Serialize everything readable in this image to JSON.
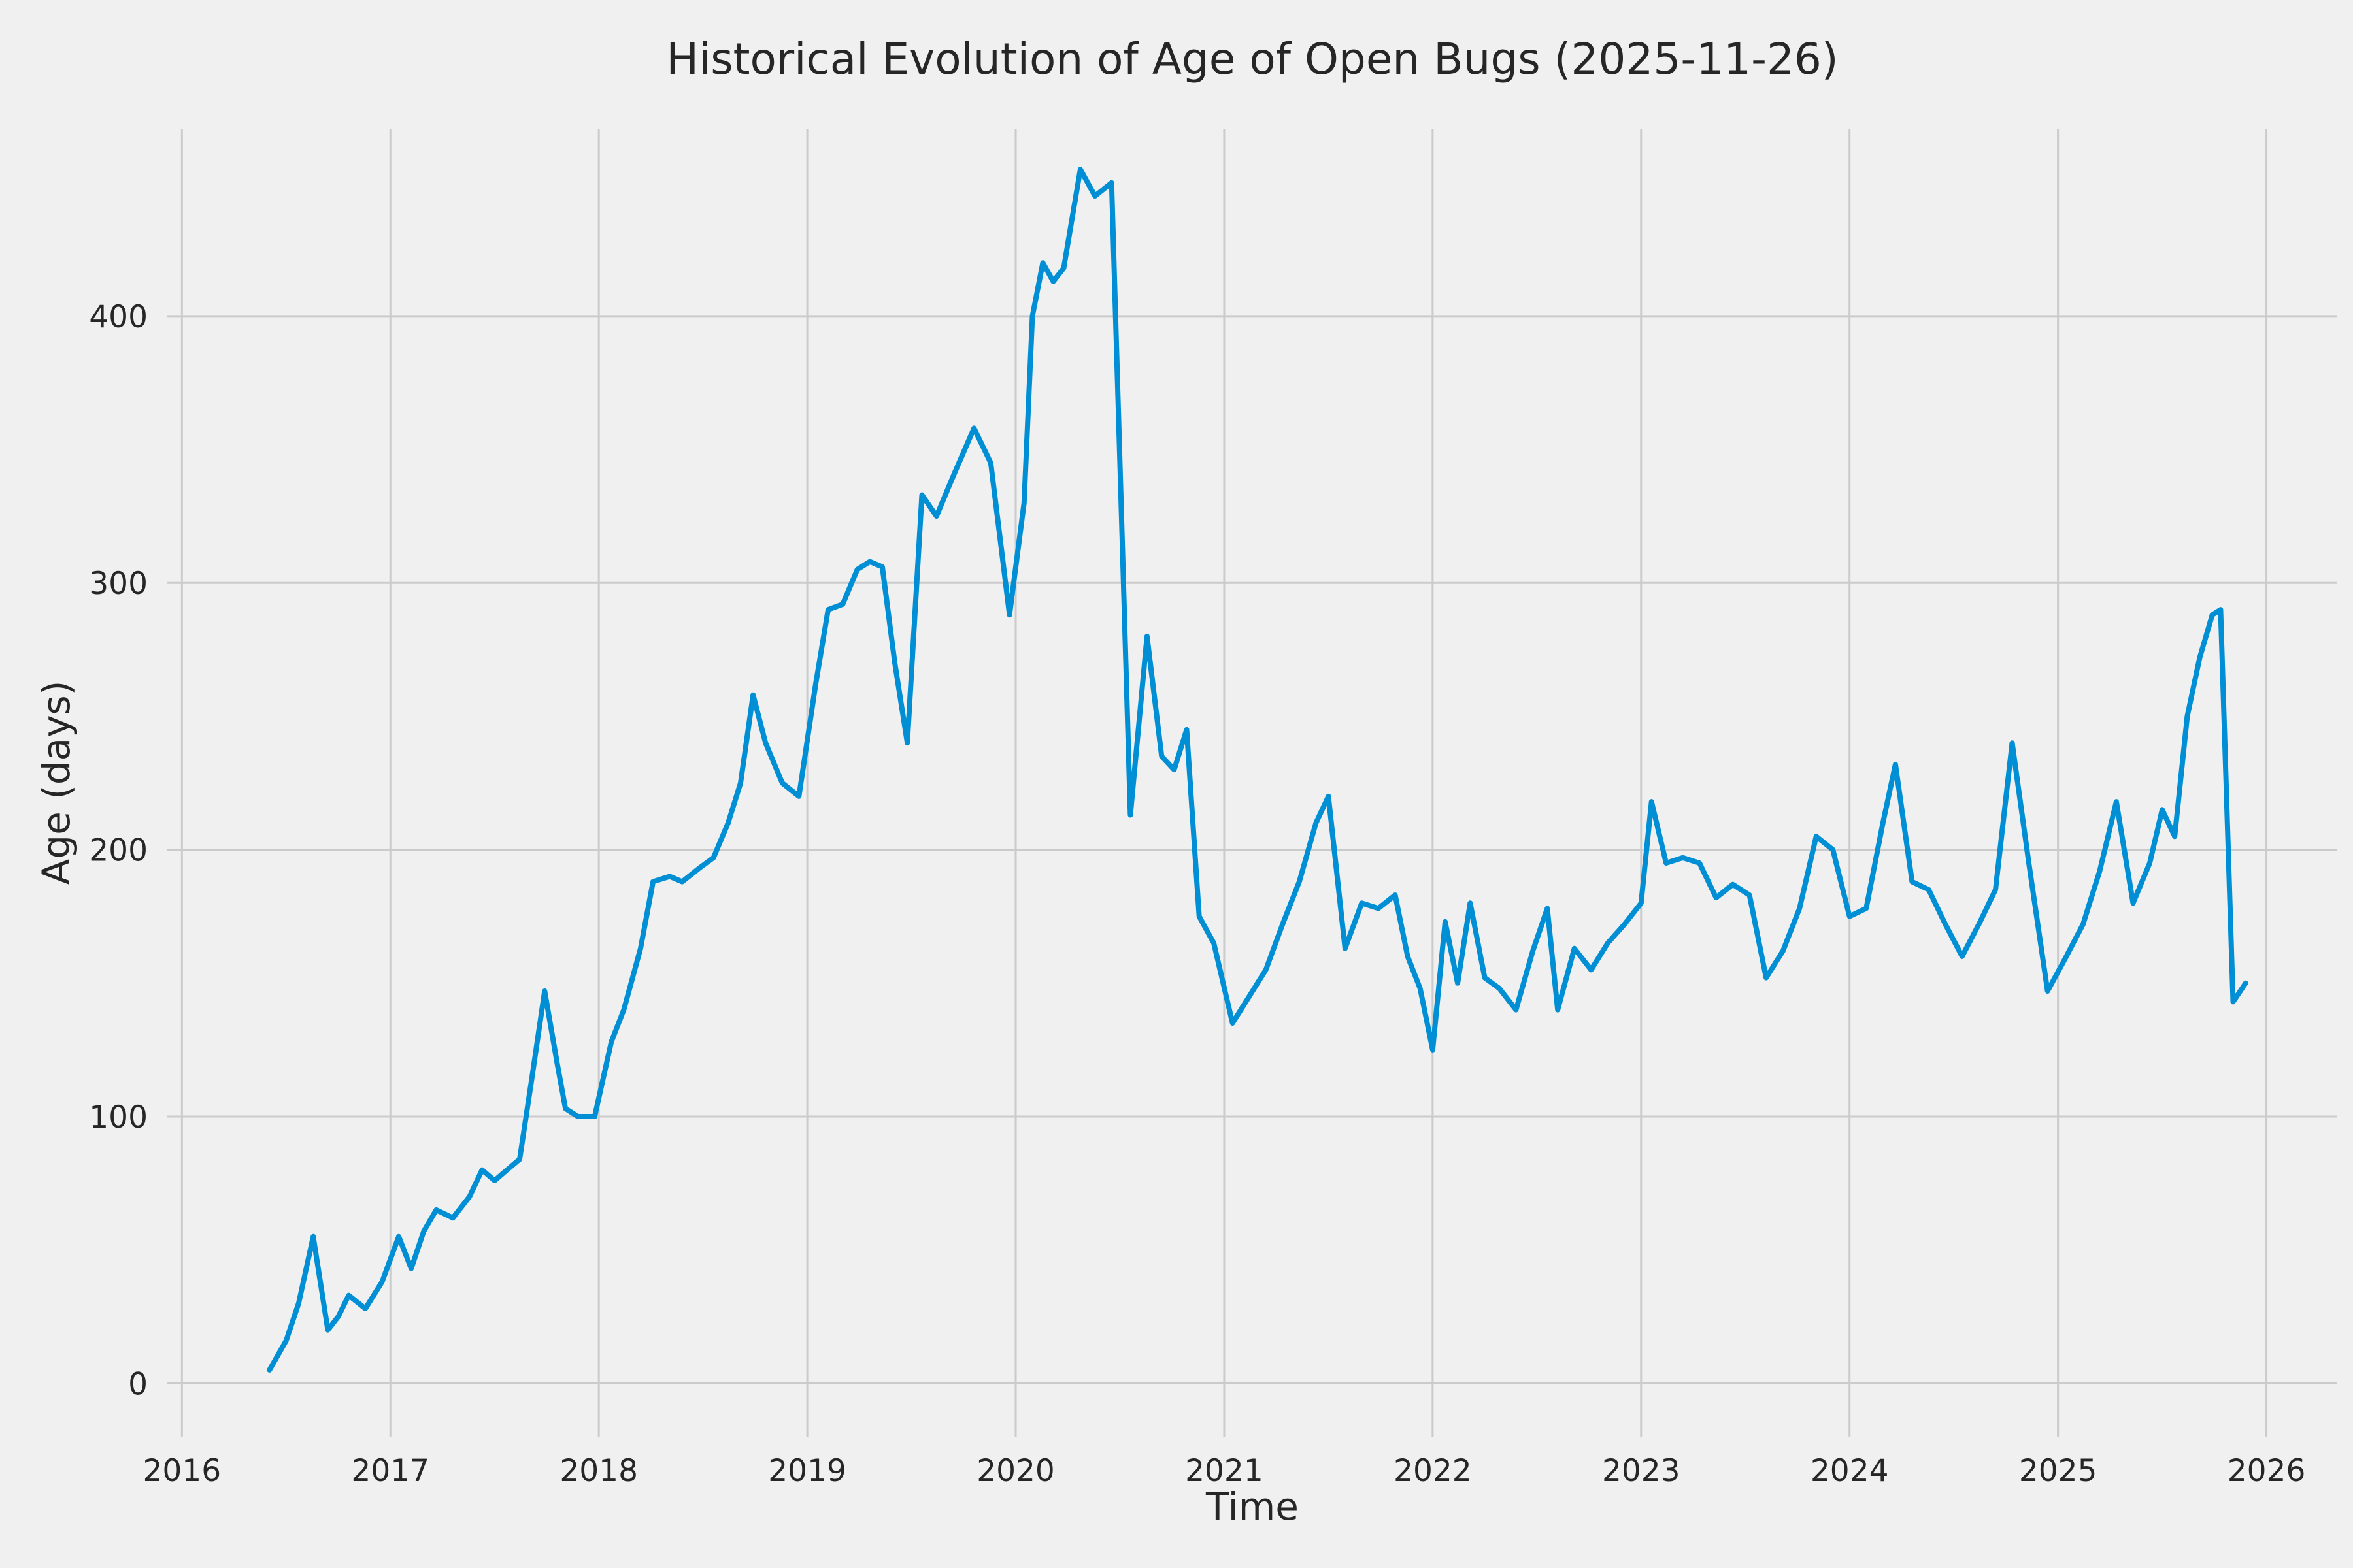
{
  "page": {
    "background": "#f0f0f0"
  },
  "chart_data": {
    "type": "line",
    "title": "Historical Evolution of Age of Open Bugs (2025-11-26)",
    "xlabel": "Time",
    "ylabel": "Age (days)",
    "legend": "none",
    "grid": true,
    "grid_color": "#cbcbcb",
    "background": "#f0f0f0",
    "tick_label_color": "#262626",
    "x_ticks": [
      2016,
      2017,
      2018,
      2019,
      2020,
      2021,
      2022,
      2023,
      2024,
      2025,
      2026
    ],
    "y_ticks": [
      0,
      100,
      200,
      300,
      400
    ],
    "xlim": [
      2015.93,
      2026.34
    ],
    "ylim": [
      -20,
      470
    ],
    "series": [
      {
        "name": "age-of-open-bugs",
        "color": "#008fd5",
        "points": [
          [
            2016.42,
            5
          ],
          [
            2016.5,
            16
          ],
          [
            2016.56,
            30
          ],
          [
            2016.63,
            55
          ],
          [
            2016.7,
            20
          ],
          [
            2016.75,
            25
          ],
          [
            2016.8,
            33
          ],
          [
            2016.88,
            28
          ],
          [
            2016.96,
            38
          ],
          [
            2017.04,
            55
          ],
          [
            2017.1,
            43
          ],
          [
            2017.16,
            57
          ],
          [
            2017.22,
            65
          ],
          [
            2017.3,
            62
          ],
          [
            2017.38,
            70
          ],
          [
            2017.44,
            80
          ],
          [
            2017.5,
            76
          ],
          [
            2017.56,
            80
          ],
          [
            2017.62,
            84
          ],
          [
            2017.68,
            115
          ],
          [
            2017.74,
            147
          ],
          [
            2017.8,
            120
          ],
          [
            2017.84,
            103
          ],
          [
            2017.9,
            100
          ],
          [
            2017.98,
            100
          ],
          [
            2018.06,
            128
          ],
          [
            2018.12,
            140
          ],
          [
            2018.2,
            163
          ],
          [
            2018.26,
            188
          ],
          [
            2018.34,
            190
          ],
          [
            2018.4,
            188
          ],
          [
            2018.48,
            193
          ],
          [
            2018.55,
            197
          ],
          [
            2018.62,
            210
          ],
          [
            2018.68,
            225
          ],
          [
            2018.74,
            258
          ],
          [
            2018.8,
            240
          ],
          [
            2018.88,
            225
          ],
          [
            2018.96,
            220
          ],
          [
            2019.04,
            262
          ],
          [
            2019.1,
            290
          ],
          [
            2019.17,
            292
          ],
          [
            2019.24,
            305
          ],
          [
            2019.3,
            308
          ],
          [
            2019.36,
            306
          ],
          [
            2019.42,
            270
          ],
          [
            2019.48,
            240
          ],
          [
            2019.55,
            333
          ],
          [
            2019.62,
            325
          ],
          [
            2019.7,
            340
          ],
          [
            2019.8,
            358
          ],
          [
            2019.88,
            345
          ],
          [
            2019.97,
            288
          ],
          [
            2020.04,
            330
          ],
          [
            2020.08,
            400
          ],
          [
            2020.13,
            420
          ],
          [
            2020.18,
            413
          ],
          [
            2020.23,
            418
          ],
          [
            2020.31,
            455
          ],
          [
            2020.38,
            445
          ],
          [
            2020.46,
            450
          ],
          [
            2020.55,
            213
          ],
          [
            2020.63,
            280
          ],
          [
            2020.7,
            235
          ],
          [
            2020.76,
            230
          ],
          [
            2020.82,
            245
          ],
          [
            2020.88,
            175
          ],
          [
            2020.95,
            165
          ],
          [
            2021.04,
            135
          ],
          [
            2021.12,
            145
          ],
          [
            2021.2,
            155
          ],
          [
            2021.28,
            172
          ],
          [
            2021.36,
            188
          ],
          [
            2021.44,
            210
          ],
          [
            2021.5,
            220
          ],
          [
            2021.58,
            163
          ],
          [
            2021.66,
            180
          ],
          [
            2021.74,
            178
          ],
          [
            2021.82,
            183
          ],
          [
            2021.88,
            160
          ],
          [
            2021.94,
            148
          ],
          [
            2022.0,
            125
          ],
          [
            2022.06,
            173
          ],
          [
            2022.12,
            150
          ],
          [
            2022.18,
            180
          ],
          [
            2022.25,
            152
          ],
          [
            2022.32,
            148
          ],
          [
            2022.4,
            140
          ],
          [
            2022.48,
            162
          ],
          [
            2022.55,
            178
          ],
          [
            2022.6,
            140
          ],
          [
            2022.68,
            163
          ],
          [
            2022.76,
            155
          ],
          [
            2022.84,
            165
          ],
          [
            2022.92,
            172
          ],
          [
            2023.0,
            180
          ],
          [
            2023.05,
            218
          ],
          [
            2023.12,
            195
          ],
          [
            2023.2,
            197
          ],
          [
            2023.28,
            195
          ],
          [
            2023.36,
            182
          ],
          [
            2023.44,
            187
          ],
          [
            2023.52,
            183
          ],
          [
            2023.6,
            152
          ],
          [
            2023.68,
            162
          ],
          [
            2023.76,
            178
          ],
          [
            2023.84,
            205
          ],
          [
            2023.92,
            200
          ],
          [
            2024.0,
            175
          ],
          [
            2024.08,
            178
          ],
          [
            2024.16,
            210
          ],
          [
            2024.22,
            232
          ],
          [
            2024.3,
            188
          ],
          [
            2024.38,
            185
          ],
          [
            2024.46,
            172
          ],
          [
            2024.54,
            160
          ],
          [
            2024.62,
            172
          ],
          [
            2024.7,
            185
          ],
          [
            2024.78,
            240
          ],
          [
            2024.86,
            195
          ],
          [
            2024.95,
            147
          ],
          [
            2025.04,
            160
          ],
          [
            2025.12,
            172
          ],
          [
            2025.2,
            192
          ],
          [
            2025.28,
            218
          ],
          [
            2025.36,
            180
          ],
          [
            2025.44,
            195
          ],
          [
            2025.5,
            215
          ],
          [
            2025.56,
            205
          ],
          [
            2025.62,
            250
          ],
          [
            2025.68,
            272
          ],
          [
            2025.74,
            288
          ],
          [
            2025.78,
            290
          ],
          [
            2025.84,
            143
          ],
          [
            2025.9,
            150
          ]
        ]
      }
    ]
  }
}
